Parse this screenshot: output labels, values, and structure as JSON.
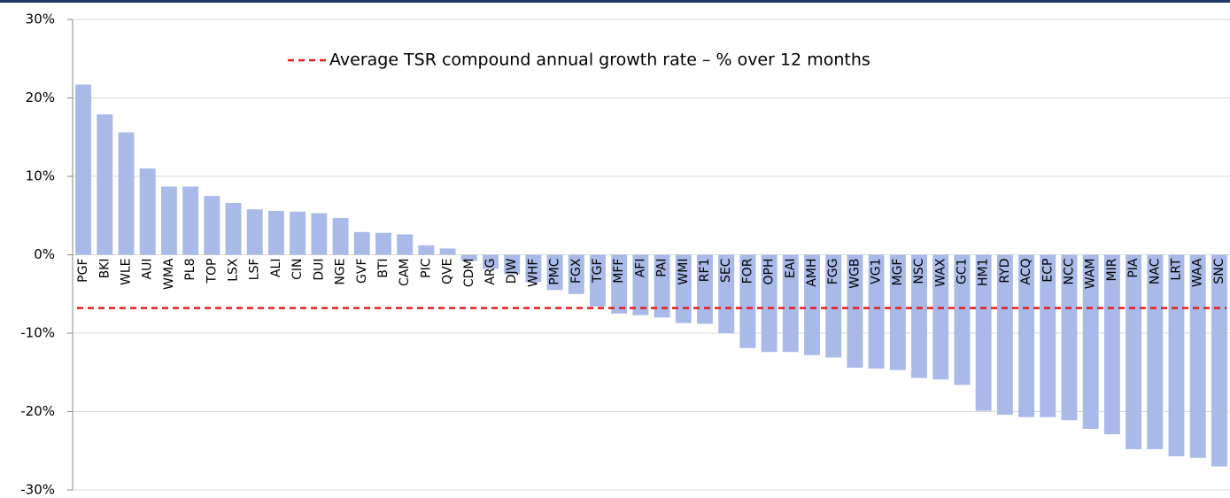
{
  "chart_data": {
    "type": "bar",
    "categories": [
      "PGF",
      "BKI",
      "WLE",
      "AUI",
      "WMA",
      "PL8",
      "TOP",
      "LSX",
      "LSF",
      "ALI",
      "CIN",
      "DUI",
      "NGE",
      "GVF",
      "BTI",
      "CAM",
      "PIC",
      "QVE",
      "CDM",
      "ARG",
      "DJW",
      "WHF",
      "PMC",
      "FGX",
      "TGF",
      "MFF",
      "AFI",
      "PAI",
      "WMI",
      "RF1",
      "SEC",
      "FOR",
      "OPH",
      "EAI",
      "AMH",
      "FGG",
      "WGB",
      "VG1",
      "MGF",
      "NSC",
      "WAX",
      "GC1",
      "HM1",
      "RYD",
      "ACQ",
      "ECP",
      "NCC",
      "WAM",
      "MIR",
      "PIA",
      "NAC",
      "LRT",
      "WAA",
      "SNC"
    ],
    "values": [
      21.7,
      17.9,
      15.6,
      11.0,
      8.7,
      8.7,
      7.5,
      6.6,
      5.8,
      5.6,
      5.5,
      5.3,
      4.7,
      2.9,
      2.8,
      2.6,
      1.2,
      0.8,
      -0.8,
      -1.8,
      -2.5,
      -3.5,
      -4.5,
      -5.0,
      -6.6,
      -7.5,
      -7.7,
      -8.0,
      -8.7,
      -8.8,
      -10.0,
      -11.9,
      -12.4,
      -12.4,
      -12.8,
      -13.1,
      -14.4,
      -14.5,
      -14.7,
      -15.7,
      -15.9,
      -16.6,
      -19.9,
      -20.4,
      -20.7,
      -20.7,
      -21.1,
      -22.2,
      -22.9,
      -24.8,
      -24.8,
      -25.7,
      -25.9,
      -27.0
    ],
    "color": "#a9b9e8",
    "average": {
      "name": "Average TSR compound annual growth rate – % over 12 months",
      "value": -6.8,
      "color": "#e0201b"
    },
    "ylim": [
      -30,
      30
    ],
    "yticks": [
      {
        "value": 30,
        "label": "30%"
      },
      {
        "value": 20,
        "label": "20%"
      },
      {
        "value": 10,
        "label": "10%"
      },
      {
        "value": 0,
        "label": "0%"
      },
      {
        "value": -10,
        "label": "-10%"
      },
      {
        "value": -20,
        "label": "-20%"
      },
      {
        "value": -30,
        "label": "-30%"
      }
    ],
    "grid": true
  }
}
